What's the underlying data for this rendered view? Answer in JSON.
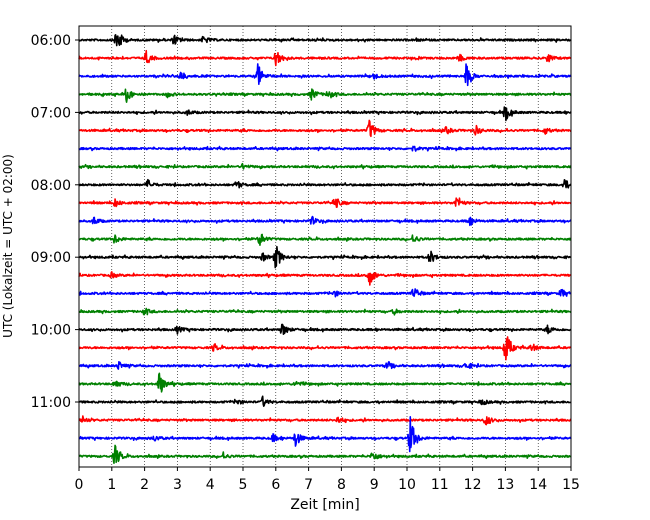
{
  "chart_data": {
    "type": "line",
    "title": "",
    "xlabel": "Zeit  [min]",
    "ylabel": "UTC (Lokalzeit = UTC + 02:00)",
    "xlim": [
      0,
      15
    ],
    "x_ticks": [
      "0",
      "1",
      "2",
      "3",
      "4",
      "5",
      "6",
      "7",
      "8",
      "9",
      "10",
      "11",
      "12",
      "13",
      "14",
      "15"
    ],
    "y_tick_labels": [
      "06:00",
      "07:00",
      "08:00",
      "09:00",
      "10:00",
      "11:00"
    ],
    "grid": "vertical dotted",
    "row_interval_min": 15,
    "row_colors": [
      "#000000",
      "#ff0000",
      "#0000ff",
      "#008000"
    ],
    "rows": [
      {
        "time": "06:00",
        "events": [
          [
            1.15,
            1.0
          ],
          [
            2.9,
            0.35
          ],
          [
            3.8,
            0.3
          ]
        ]
      },
      {
        "time": "06:15",
        "events": [
          [
            2.05,
            0.5
          ],
          [
            6.0,
            0.7
          ],
          [
            11.6,
            0.25
          ],
          [
            14.3,
            0.3
          ]
        ]
      },
      {
        "time": "06:30",
        "events": [
          [
            3.1,
            0.4
          ],
          [
            5.45,
            0.9
          ],
          [
            11.8,
            0.9
          ],
          [
            9.0,
            0.2
          ]
        ]
      },
      {
        "time": "06:45",
        "events": [
          [
            1.45,
            0.55
          ],
          [
            7.1,
            0.45
          ],
          [
            7.6,
            0.35
          ],
          [
            2.7,
            0.2
          ]
        ]
      },
      {
        "time": "07:00",
        "events": [
          [
            13.0,
            0.6
          ],
          [
            3.3,
            0.2
          ]
        ]
      },
      {
        "time": "07:15",
        "events": [
          [
            8.85,
            0.8
          ],
          [
            12.1,
            0.35
          ],
          [
            11.2,
            0.25
          ],
          [
            14.2,
            0.25
          ]
        ]
      },
      {
        "time": "07:30",
        "events": [
          [
            10.2,
            0.2
          ]
        ]
      },
      {
        "time": "07:45",
        "events": [
          [
            5.0,
            0.2
          ]
        ]
      },
      {
        "time": "08:00",
        "events": [
          [
            2.1,
            0.35
          ],
          [
            4.8,
            0.3
          ],
          [
            14.8,
            0.4
          ]
        ]
      },
      {
        "time": "08:15",
        "events": [
          [
            7.8,
            0.45
          ],
          [
            11.5,
            0.45
          ],
          [
            1.1,
            0.3
          ]
        ]
      },
      {
        "time": "08:30",
        "events": [
          [
            0.45,
            0.3
          ],
          [
            7.1,
            0.3
          ],
          [
            11.9,
            0.35
          ]
        ]
      },
      {
        "time": "08:45",
        "events": [
          [
            5.5,
            0.55
          ],
          [
            1.1,
            0.3
          ],
          [
            10.2,
            0.3
          ]
        ]
      },
      {
        "time": "09:00",
        "events": [
          [
            6.0,
            0.9
          ],
          [
            10.7,
            0.5
          ],
          [
            5.6,
            0.3
          ]
        ]
      },
      {
        "time": "09:15",
        "events": [
          [
            8.85,
            0.75
          ],
          [
            1.0,
            0.2
          ]
        ]
      },
      {
        "time": "09:30",
        "events": [
          [
            10.2,
            0.45
          ],
          [
            14.7,
            0.3
          ],
          [
            7.8,
            0.2
          ]
        ]
      },
      {
        "time": "09:45",
        "events": [
          [
            2.0,
            0.25
          ],
          [
            9.6,
            0.2
          ]
        ]
      },
      {
        "time": "10:00",
        "events": [
          [
            6.2,
            0.5
          ],
          [
            3.0,
            0.25
          ],
          [
            14.3,
            0.3
          ]
        ]
      },
      {
        "time": "10:15",
        "events": [
          [
            13.0,
            1.3
          ],
          [
            13.8,
            0.3
          ],
          [
            4.1,
            0.25
          ]
        ]
      },
      {
        "time": "10:30",
        "events": [
          [
            1.2,
            0.3
          ],
          [
            9.4,
            0.25
          ],
          [
            11.8,
            0.3
          ]
        ]
      },
      {
        "time": "10:45",
        "events": [
          [
            2.45,
            0.9
          ],
          [
            1.1,
            0.3
          ],
          [
            6.6,
            0.2
          ]
        ]
      },
      {
        "time": "11:00",
        "events": [
          [
            5.6,
            0.35
          ],
          [
            4.8,
            0.2
          ],
          [
            12.3,
            0.2
          ]
        ]
      },
      {
        "time": "11:15",
        "events": [
          [
            12.4,
            0.4
          ],
          [
            7.9,
            0.25
          ],
          [
            0.1,
            0.25
          ]
        ]
      },
      {
        "time": "11:30",
        "events": [
          [
            10.1,
            1.5
          ],
          [
            6.6,
            0.6
          ],
          [
            5.9,
            0.3
          ],
          [
            2.3,
            0.2
          ]
        ]
      },
      {
        "time": "11:45",
        "events": [
          [
            1.1,
            0.8
          ],
          [
            8.95,
            0.4
          ],
          [
            4.4,
            0.2
          ]
        ]
      }
    ]
  }
}
